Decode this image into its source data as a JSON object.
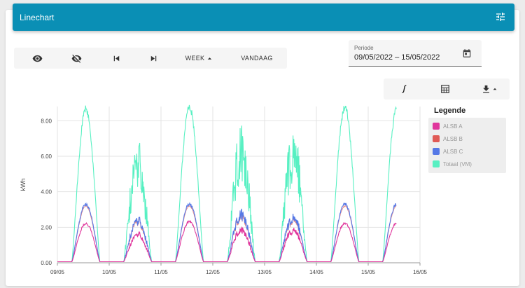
{
  "header": {
    "title": "Linechart",
    "settings_icon": "tune-icon"
  },
  "toolbar": {
    "show_icon": "eye-icon",
    "hide_icon": "eye-off-icon",
    "prev_icon": "skip-previous-icon",
    "next_icon": "skip-next-icon",
    "week_label": "WEEK",
    "today_label": "VANDAAG"
  },
  "period": {
    "label": "Periode",
    "value": "09/05/2022 – 15/05/2022",
    "icon": "calendar-icon"
  },
  "tools": {
    "integral_icon": "integral-icon",
    "calculator_icon": "calculator-icon",
    "download_icon": "download-icon"
  },
  "legend": {
    "title": "Legende",
    "items": [
      {
        "label": "ALSB A",
        "color": "#e0359c"
      },
      {
        "label": "ALSB B",
        "color": "#e05a55"
      },
      {
        "label": "ALSB C",
        "color": "#5578e6"
      },
      {
        "label": "Totaal (VM)",
        "color": "#57f0c2"
      }
    ]
  },
  "chart_data": {
    "type": "line",
    "ylabel": "kWh",
    "ylim": [
      0,
      8.8
    ],
    "yticks": [
      "0.00",
      "2.00",
      "4.00",
      "6.00",
      "8.00"
    ],
    "ytick_values": [
      0,
      2,
      4,
      6,
      8
    ],
    "xticks": [
      "09/05",
      "10/05",
      "11/05",
      "12/05",
      "13/05",
      "14/05",
      "15/05",
      "16/05"
    ],
    "grid": true,
    "legend_position": "right",
    "daily_peaks": [
      {
        "day": "09/05",
        "totaal": 8.8,
        "alsb_c": 3.3,
        "alsb_a": 2.2
      },
      {
        "day": "10/05",
        "totaal": 6.9,
        "alsb_c": 2.6,
        "alsb_a": 1.7
      },
      {
        "day": "11/05",
        "totaal": 8.9,
        "alsb_c": 3.3,
        "alsb_a": 2.3
      },
      {
        "day": "12/05",
        "totaal": 7.9,
        "alsb_c": 3.0,
        "alsb_a": 2.0
      },
      {
        "day": "13/05",
        "totaal": 7.9,
        "alsb_c": 2.8,
        "alsb_a": 2.0
      },
      {
        "day": "14/05",
        "totaal": 8.9,
        "alsb_c": 3.3,
        "alsb_a": 2.2
      },
      {
        "day": "15/05",
        "totaal": 8.8,
        "alsb_c": 3.3,
        "alsb_a": 2.2
      }
    ]
  }
}
